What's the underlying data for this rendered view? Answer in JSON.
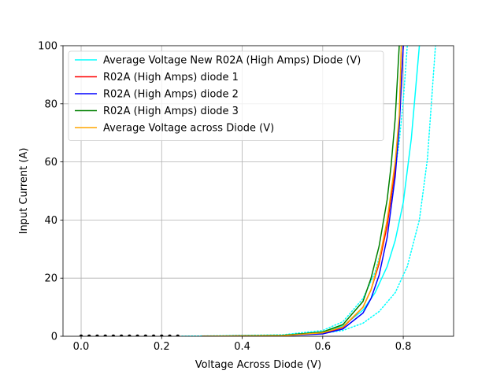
{
  "chart_data": {
    "type": "line",
    "title": "",
    "xlabel": "Voltage Across Diode (V)",
    "ylabel": "Input Current (A)",
    "xlim": [
      -0.045,
      0.925
    ],
    "ylim": [
      0,
      100
    ],
    "xticks": [
      0.0,
      0.2,
      0.4,
      0.6,
      0.8
    ],
    "xtick_labels": [
      "0.0",
      "0.2",
      "0.4",
      "0.6",
      "0.8"
    ],
    "yticks": [
      0,
      20,
      40,
      60,
      80,
      100
    ],
    "ytick_labels": [
      "0",
      "20",
      "40",
      "60",
      "80",
      "100"
    ],
    "grid": true,
    "legend_position": "top-left",
    "series": [
      {
        "name": "Average Voltage New R02A (High Amps) Diode (V)",
        "color": "#00ffff",
        "style": "solid",
        "x": [
          0.3,
          0.5,
          0.6,
          0.65,
          0.7,
          0.73,
          0.76,
          0.78,
          0.8,
          0.82,
          0.84
        ],
        "y": [
          0.0,
          0.2,
          1.5,
          3.5,
          9,
          15,
          24,
          33,
          46,
          68,
          100
        ]
      },
      {
        "name": "",
        "color": "#00ffff",
        "style": "dotted",
        "x": [
          0.25,
          0.5,
          0.6,
          0.65,
          0.7,
          0.74,
          0.78,
          0.81,
          0.84,
          0.86,
          0.88
        ],
        "y": [
          0.0,
          0.2,
          1.0,
          2.0,
          4.5,
          8.5,
          15,
          24,
          40,
          61,
          100
        ]
      },
      {
        "name": "",
        "color": "#00ffff",
        "style": "dotted",
        "x": [
          0.25,
          0.5,
          0.6,
          0.65,
          0.7,
          0.73,
          0.75,
          0.77,
          0.79,
          0.8,
          0.81
        ],
        "y": [
          0.0,
          0.5,
          2.0,
          5.0,
          13,
          22,
          32,
          47,
          67,
          81,
          100
        ]
      },
      {
        "name": "R02A (High Amps) diode 1",
        "color": "#ff0000",
        "style": "solid",
        "x": [
          0.3,
          0.5,
          0.6,
          0.65,
          0.7,
          0.72,
          0.74,
          0.76,
          0.78,
          0.79,
          0.8
        ],
        "y": [
          0.0,
          0.2,
          1.0,
          3.0,
          10,
          16,
          25,
          38,
          58,
          73,
          100
        ]
      },
      {
        "name": "R02A (High Amps) diode 2",
        "color": "#0000ff",
        "style": "solid",
        "x": [
          0.3,
          0.5,
          0.6,
          0.65,
          0.7,
          0.72,
          0.74,
          0.76,
          0.78,
          0.79,
          0.8
        ],
        "y": [
          0.0,
          0.2,
          0.8,
          2.5,
          8,
          13,
          21,
          34,
          55,
          72,
          100
        ]
      },
      {
        "name": "R02A (High Amps) diode 3",
        "color": "#008000",
        "style": "solid",
        "x": [
          0.3,
          0.5,
          0.6,
          0.65,
          0.7,
          0.72,
          0.74,
          0.76,
          0.77,
          0.78,
          0.79
        ],
        "y": [
          0.0,
          0.3,
          1.5,
          4.0,
          12,
          20,
          31,
          47,
          59,
          75,
          100
        ]
      },
      {
        "name": "Average Voltage across Diode (V)",
        "color": "#ffa500",
        "style": "solid",
        "x": [
          0.3,
          0.5,
          0.6,
          0.65,
          0.7,
          0.72,
          0.74,
          0.76,
          0.78,
          0.79,
          0.795
        ],
        "y": [
          0.0,
          0.2,
          1.2,
          3.2,
          10,
          16,
          26,
          40,
          60,
          76,
          100
        ]
      },
      {
        "name": "",
        "color": "#000000",
        "style": "markers",
        "x": [
          0.0,
          0.02,
          0.04,
          0.06,
          0.08,
          0.1,
          0.12,
          0.14,
          0.16,
          0.18,
          0.2,
          0.22,
          0.24
        ],
        "y": [
          0,
          0,
          0,
          0,
          0,
          0,
          0,
          0,
          0,
          0,
          0,
          0,
          0
        ]
      }
    ]
  }
}
